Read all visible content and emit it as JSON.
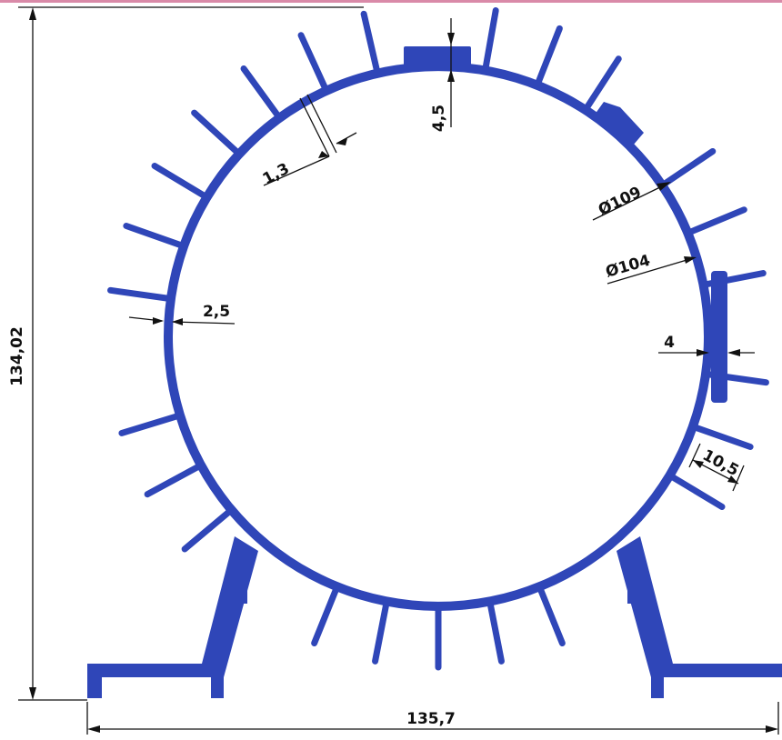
{
  "drawing": {
    "colors": {
      "profile": "#2f46b8",
      "dimension": "#111111",
      "top_border": "#d98aa8"
    },
    "dimensions": {
      "overall_height": "134,02",
      "overall_width": "135,7",
      "fin_thickness": "1,3",
      "top_flat_height": "4,5",
      "outer_diameter": "Ø109",
      "inner_diameter": "Ø104",
      "wall_thickness": "2,5",
      "side_flat_thickness": "4",
      "fin_length": "10,5"
    }
  }
}
